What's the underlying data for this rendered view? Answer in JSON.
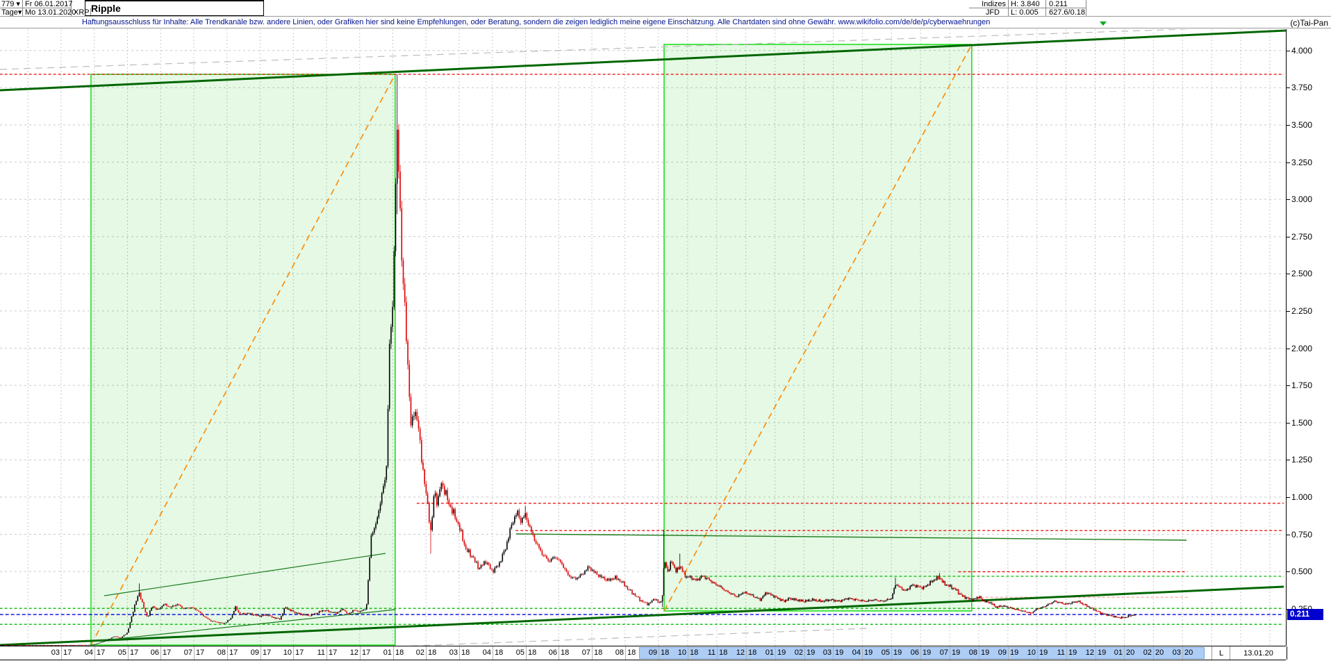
{
  "header": {
    "bars": "779",
    "period": "Tage",
    "dropdown_glyph": "▾",
    "date_from": "Fr 06.01.2017",
    "date_to": "Mo 13.01.2020",
    "symbol": "XRP",
    "title": "Ripple",
    "indizes_label": "Indizes",
    "feed": "JFD",
    "high_label": "H: 3.840",
    "low_label": "L: 0.005",
    "last_value": "0.211",
    "volume_info": "627.6/0.18"
  },
  "disclaimer": "Haftungsausschluss für Inhalte: Alle Trendkanäle bzw. andere Linien, oder Grafiken hier sind keine Empfehlungen, oder Beratung, sondern die zeigen lediglich meine eigene Einschätzung. Alle Chartdaten sind ohne Gewähr.  www.wikifolio.com/de/de/p/cyberwaehrungen",
  "watermark": "(c)Tai-Pan",
  "minimize_glyph": "−",
  "footer": {
    "last_label": "L",
    "last_date": "13.01.20",
    "highlight_start_index": 18,
    "highlight_end_index": 36
  },
  "axis": {
    "y_ticks": [
      "4.000",
      "3.750",
      "3.500",
      "3.250",
      "3.000",
      "2.750",
      "2.500",
      "2.250",
      "2.000",
      "1.750",
      "1.500",
      "1.250",
      "1.000",
      "0.750",
      "0.500",
      "0.250"
    ],
    "last_price_label": "0.211",
    "months": [
      [
        "03",
        "17"
      ],
      [
        "04",
        "17"
      ],
      [
        "05",
        "17"
      ],
      [
        "06",
        "17"
      ],
      [
        "07",
        "17"
      ],
      [
        "08",
        "17"
      ],
      [
        "09",
        "17"
      ],
      [
        "10",
        "17"
      ],
      [
        "11",
        "17"
      ],
      [
        "12",
        "17"
      ],
      [
        "01",
        "18"
      ],
      [
        "02",
        "18"
      ],
      [
        "03",
        "18"
      ],
      [
        "04",
        "18"
      ],
      [
        "05",
        "18"
      ],
      [
        "06",
        "18"
      ],
      [
        "07",
        "18"
      ],
      [
        "08",
        "18"
      ],
      [
        "09",
        "18"
      ],
      [
        "10",
        "18"
      ],
      [
        "11",
        "18"
      ],
      [
        "12",
        "18"
      ],
      [
        "01",
        "19"
      ],
      [
        "02",
        "19"
      ],
      [
        "03",
        "19"
      ],
      [
        "04",
        "19"
      ],
      [
        "05",
        "19"
      ],
      [
        "06",
        "19"
      ],
      [
        "07",
        "19"
      ],
      [
        "08",
        "19"
      ],
      [
        "09",
        "19"
      ],
      [
        "10",
        "19"
      ],
      [
        "11",
        "19"
      ],
      [
        "12",
        "19"
      ],
      [
        "01",
        "20"
      ],
      [
        "02",
        "20"
      ],
      [
        "03",
        "20"
      ]
    ]
  },
  "colors": {
    "up": "#000000",
    "down": "#dd0000",
    "box_border": "#00dd00",
    "box_fill": "rgba(0,200,0,0.10)",
    "orange": "#ff8800",
    "green_thick": "#006600",
    "green_thin": "#1a7a1a",
    "green_dash": "#00bb00",
    "red_dash": "#ee0000",
    "pink_dash": "#ff9999",
    "gray_dash": "#bbbbbb",
    "blue_dash": "#0000dd",
    "grid": "#c9c9c9"
  },
  "chart_data": {
    "type": "candlestick",
    "title": "Ripple",
    "symbol": "XRP",
    "period": "Tage",
    "range": "06.01.2017 - 13.01.2020",
    "ylim": [
      0.0,
      4.1
    ],
    "y_step": 0.25,
    "high": 3.84,
    "low": 0.005,
    "last": 0.211,
    "t_unit": "months_since_2017-03-01",
    "anchors": [
      [
        -1.83,
        0.006
      ],
      [
        0,
        0.006
      ],
      [
        0.8,
        0.007
      ],
      [
        1.0,
        0.01
      ],
      [
        1.2,
        0.025
      ],
      [
        1.4,
        0.04
      ],
      [
        1.6,
        0.065
      ],
      [
        1.8,
        0.055
      ],
      [
        2.0,
        0.09
      ],
      [
        2.2,
        0.26
      ],
      [
        2.35,
        0.36,
        0.42,
        null
      ],
      [
        2.5,
        0.25
      ],
      [
        2.6,
        0.19
      ],
      [
        2.75,
        0.27
      ],
      [
        2.9,
        0.24
      ],
      [
        3.1,
        0.28
      ],
      [
        3.3,
        0.26
      ],
      [
        3.5,
        0.28
      ],
      [
        3.7,
        0.25
      ],
      [
        3.9,
        0.26
      ],
      [
        4.1,
        0.24
      ],
      [
        4.3,
        0.2
      ],
      [
        4.5,
        0.17
      ],
      [
        4.7,
        0.16
      ],
      [
        4.9,
        0.15
      ],
      [
        5.1,
        0.18
      ],
      [
        5.25,
        0.26
      ],
      [
        5.4,
        0.21
      ],
      [
        5.6,
        0.22
      ],
      [
        5.8,
        0.21
      ],
      [
        6.0,
        0.2
      ],
      [
        6.2,
        0.21
      ],
      [
        6.4,
        0.19
      ],
      [
        6.6,
        0.18
      ],
      [
        6.75,
        0.26
      ],
      [
        6.9,
        0.24
      ],
      [
        7.1,
        0.22
      ],
      [
        7.3,
        0.21
      ],
      [
        7.5,
        0.205
      ],
      [
        7.7,
        0.22
      ],
      [
        7.9,
        0.24
      ],
      [
        8.1,
        0.23
      ],
      [
        8.3,
        0.22
      ],
      [
        8.5,
        0.25
      ],
      [
        8.65,
        0.21
      ],
      [
        8.8,
        0.24
      ],
      [
        9.0,
        0.23
      ],
      [
        9.2,
        0.25
      ],
      [
        9.35,
        0.75
      ],
      [
        9.5,
        0.82
      ],
      [
        9.65,
        1.0
      ],
      [
        9.8,
        1.15
      ],
      [
        9.9,
        2.0
      ],
      [
        10.0,
        2.3
      ],
      [
        10.08,
        3.1
      ],
      [
        10.13,
        3.4,
        3.84,
        2.9
      ],
      [
        10.2,
        3.1
      ],
      [
        10.27,
        2.6
      ],
      [
        10.35,
        2.3
      ],
      [
        10.45,
        1.9
      ],
      [
        10.55,
        1.45
      ],
      [
        10.65,
        1.6
      ],
      [
        10.75,
        1.5
      ],
      [
        10.85,
        1.3
      ],
      [
        10.95,
        1.1
      ],
      [
        11.05,
        0.95
      ],
      [
        11.15,
        0.75,
        null,
        0.62
      ],
      [
        11.25,
        1.05
      ],
      [
        11.35,
        0.95
      ],
      [
        11.45,
        1.1
      ],
      [
        11.55,
        1.05
      ],
      [
        11.7,
        0.95
      ],
      [
        11.85,
        0.88
      ],
      [
        12.0,
        0.8
      ],
      [
        12.2,
        0.65
      ],
      [
        12.4,
        0.6
      ],
      [
        12.6,
        0.52
      ],
      [
        12.8,
        0.57
      ],
      [
        13.0,
        0.5
      ],
      [
        13.2,
        0.55
      ],
      [
        13.4,
        0.66
      ],
      [
        13.6,
        0.83
      ],
      [
        13.75,
        0.9
      ],
      [
        13.85,
        0.84
      ],
      [
        14.0,
        0.88,
        0.94,
        null
      ],
      [
        14.15,
        0.78
      ],
      [
        14.3,
        0.7
      ],
      [
        14.5,
        0.62
      ],
      [
        14.7,
        0.57
      ],
      [
        14.9,
        0.6
      ],
      [
        15.1,
        0.55
      ],
      [
        15.3,
        0.47
      ],
      [
        15.5,
        0.45
      ],
      [
        15.7,
        0.48
      ],
      [
        15.9,
        0.53
      ],
      [
        16.1,
        0.49
      ],
      [
        16.3,
        0.46
      ],
      [
        16.5,
        0.44
      ],
      [
        16.7,
        0.46
      ],
      [
        16.9,
        0.43
      ],
      [
        17.1,
        0.38
      ],
      [
        17.3,
        0.34
      ],
      [
        17.5,
        0.3
      ],
      [
        17.7,
        0.28
      ],
      [
        17.9,
        0.32
      ],
      [
        18.0,
        0.29
      ],
      [
        18.12,
        0.3,
        null,
        0.262
      ],
      [
        18.2,
        0.58,
        0.78,
        null
      ],
      [
        18.32,
        0.5
      ],
      [
        18.45,
        0.57
      ],
      [
        18.6,
        0.5
      ],
      [
        18.75,
        0.54,
        0.62,
        null
      ],
      [
        18.9,
        0.47
      ],
      [
        19.1,
        0.46
      ],
      [
        19.3,
        0.44
      ],
      [
        19.5,
        0.47
      ],
      [
        19.7,
        0.45
      ],
      [
        19.9,
        0.42
      ],
      [
        20.1,
        0.4
      ],
      [
        20.3,
        0.37
      ],
      [
        20.5,
        0.35
      ],
      [
        20.7,
        0.33
      ],
      [
        20.9,
        0.36
      ],
      [
        21.1,
        0.35
      ],
      [
        21.3,
        0.33
      ],
      [
        21.5,
        0.31
      ],
      [
        21.7,
        0.36
      ],
      [
        21.9,
        0.34
      ],
      [
        22.1,
        0.32
      ],
      [
        22.3,
        0.3
      ],
      [
        22.5,
        0.32
      ],
      [
        22.7,
        0.31
      ],
      [
        23.0,
        0.3
      ],
      [
        23.3,
        0.31
      ],
      [
        23.6,
        0.3
      ],
      [
        23.9,
        0.31
      ],
      [
        24.2,
        0.3
      ],
      [
        24.5,
        0.32
      ],
      [
        24.8,
        0.31
      ],
      [
        25.1,
        0.3
      ],
      [
        25.4,
        0.31
      ],
      [
        25.7,
        0.3
      ],
      [
        26.0,
        0.32
      ],
      [
        26.15,
        0.42,
        0.46,
        null
      ],
      [
        26.3,
        0.39
      ],
      [
        26.5,
        0.37
      ],
      [
        26.7,
        0.41
      ],
      [
        26.9,
        0.4
      ],
      [
        27.1,
        0.39
      ],
      [
        27.3,
        0.42
      ],
      [
        27.5,
        0.45
      ],
      [
        27.65,
        0.46,
        0.49,
        null
      ],
      [
        27.8,
        0.42
      ],
      [
        28.0,
        0.4
      ],
      [
        28.2,
        0.38
      ],
      [
        28.4,
        0.34
      ],
      [
        28.6,
        0.32
      ],
      [
        28.8,
        0.31
      ],
      [
        29.0,
        0.33
      ],
      [
        29.2,
        0.3
      ],
      [
        29.4,
        0.29
      ],
      [
        29.6,
        0.26
      ],
      [
        29.8,
        0.27
      ],
      [
        30.0,
        0.26
      ],
      [
        30.2,
        0.25
      ],
      [
        30.4,
        0.24
      ],
      [
        30.6,
        0.23
      ],
      [
        30.8,
        0.22,
        null,
        0.205
      ],
      [
        31.0,
        0.25
      ],
      [
        31.2,
        0.26
      ],
      [
        31.4,
        0.28
      ],
      [
        31.6,
        0.3
      ],
      [
        31.8,
        0.29
      ],
      [
        32.0,
        0.28
      ],
      [
        32.2,
        0.29
      ],
      [
        32.4,
        0.3
      ],
      [
        32.6,
        0.28
      ],
      [
        32.8,
        0.26
      ],
      [
        33.0,
        0.24
      ],
      [
        33.2,
        0.22
      ],
      [
        33.4,
        0.21
      ],
      [
        33.6,
        0.2
      ],
      [
        33.8,
        0.19
      ],
      [
        34.0,
        0.19
      ],
      [
        34.15,
        0.2
      ],
      [
        34.3,
        0.208
      ],
      [
        34.4,
        0.211
      ]
    ],
    "levels": [
      {
        "name": "ath-resistance",
        "price": 3.84,
        "style": "red_dash",
        "t0": -1.85,
        "t1": null
      },
      {
        "name": "resistance-0958",
        "price": 0.958,
        "style": "red_dash",
        "t0": 10.72,
        "t1": null
      },
      {
        "name": "resistance-0775",
        "price": 0.775,
        "style": "red_dash",
        "t0": 13.7,
        "t1": null
      },
      {
        "name": "resistance-0498",
        "price": 0.498,
        "style": "red_dash",
        "t0": 28.3,
        "t1": 36.1
      },
      {
        "name": "level-0468",
        "price": 0.468,
        "style": "green_dash",
        "t0": 19.25,
        "t1": null
      },
      {
        "name": "level-0327",
        "price": 0.327,
        "style": "pink_dash",
        "t0": 28.9,
        "t1": 36.2
      },
      {
        "name": "level-0253",
        "price": 0.253,
        "style": "green_dash",
        "t0": -1.85,
        "t1": null
      },
      {
        "name": "last-price-line",
        "price": 0.211,
        "style": "blue_dash",
        "t0": -1.85,
        "t1": null
      },
      {
        "name": "level-0145",
        "price": 0.145,
        "style": "green_dash",
        "t0": -1.85,
        "t1": null
      }
    ],
    "boxes": [
      {
        "name": "trend-box-2017",
        "t0": 0.9,
        "t1": 10.07,
        "p_top": 3.84,
        "p_bot": 0.006,
        "diagonal": "up"
      },
      {
        "name": "trend-box-2018-19",
        "t0": 18.19,
        "t1": 28.76,
        "p_top": 4.04,
        "p_bot": 0.235,
        "diagonal": "up"
      }
    ],
    "trendlines": [
      {
        "name": "upper-channel-thick",
        "style": "green_thick",
        "w": 3,
        "pts": [
          [
            0,
            88
          ],
          [
            1851,
            2
          ]
        ]
      },
      {
        "name": "upper-channel-gray",
        "style": "gray_dash",
        "w": 1.2,
        "dash": "10 7",
        "pts": [
          [
            0,
            58
          ],
          [
            1851,
            -5
          ]
        ]
      },
      {
        "name": "lower-channel-thick",
        "style": "green_thick",
        "w": 3,
        "pts": [
          [
            0,
            887
          ],
          [
            1848,
            803
          ]
        ]
      },
      {
        "name": "lower-channel-gray",
        "style": "gray_dash",
        "w": 1.2,
        "dash": "10 7",
        "pts": [
          [
            575,
            889
          ],
          [
            1250,
            863
          ]
        ]
      },
      {
        "name": "box1-inner-upper",
        "style": "green_thin",
        "w": 1.2,
        "pts": [
          [
            150,
            816
          ],
          [
            555,
            755
          ]
        ]
      },
      {
        "name": "box1-inner-lower",
        "style": "green_thin",
        "w": 1.2,
        "pts": [
          [
            131,
            882
          ],
          [
            569,
            836
          ]
        ]
      },
      {
        "name": "mid-green-075",
        "style": "green_thin",
        "w": 1.4,
        "pts": [
          [
            743,
            727
          ],
          [
            1708,
            736
          ]
        ]
      }
    ]
  }
}
